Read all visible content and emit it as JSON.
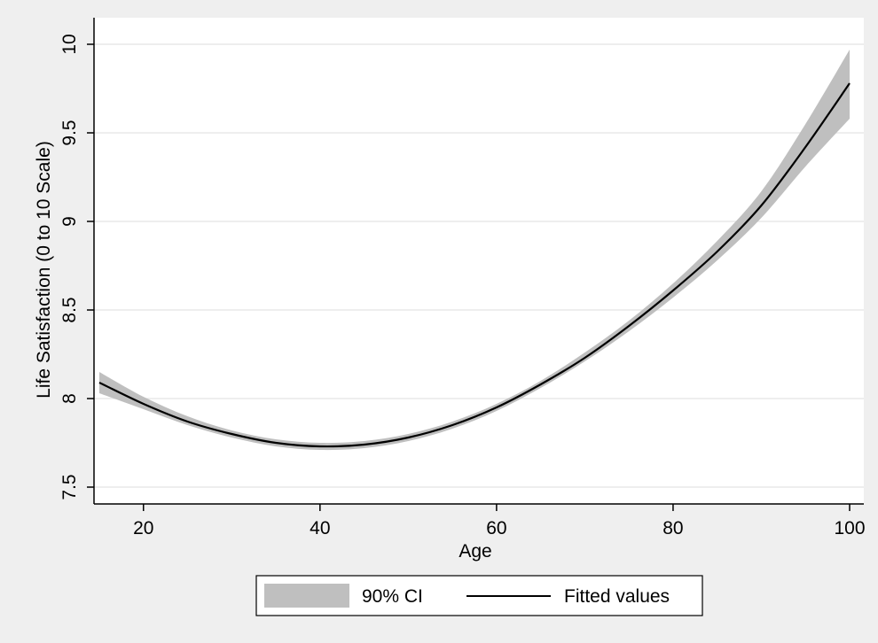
{
  "colors": {
    "background": "#efefef",
    "plot_area": "#ffffff",
    "grid": "#e8e8e8",
    "ci_band": "#bfbfbf",
    "line": "#000000",
    "axis": "#000000"
  },
  "chart_data": {
    "type": "line",
    "title": "",
    "xlabel": "Age",
    "ylabel": "Life Satisfaction (0 to 10 Scale)",
    "xlim": [
      15,
      100
    ],
    "ylim": [
      7.5,
      10
    ],
    "xticks": [
      20,
      40,
      60,
      80,
      100
    ],
    "yticks": [
      7.5,
      8,
      8.5,
      9,
      9.5,
      10
    ],
    "xtick_labels": [
      "20",
      "40",
      "60",
      "80",
      "100"
    ],
    "ytick_labels": [
      "7.5",
      "8",
      "8.5",
      "9",
      "9.5",
      "10"
    ],
    "grid": "horizontal",
    "legend": {
      "placement": "bottom",
      "entries": [
        "90% CI",
        "Fitted values"
      ]
    },
    "x": [
      15,
      20,
      25,
      30,
      35,
      40,
      45,
      50,
      55,
      60,
      65,
      70,
      75,
      80,
      85,
      90,
      95,
      100
    ],
    "series": [
      {
        "name": "Fitted values",
        "type": "line",
        "values": [
          8.09,
          7.97,
          7.87,
          7.8,
          7.75,
          7.73,
          7.74,
          7.78,
          7.85,
          7.95,
          8.08,
          8.23,
          8.41,
          8.61,
          8.83,
          9.09,
          9.42,
          9.78
        ]
      },
      {
        "name": "90% CI",
        "type": "band",
        "lower": [
          8.03,
          7.94,
          7.85,
          7.78,
          7.73,
          7.71,
          7.72,
          7.76,
          7.83,
          7.93,
          8.06,
          8.21,
          8.38,
          8.57,
          8.78,
          9.02,
          9.31,
          9.58
        ],
        "upper": [
          8.15,
          8.01,
          7.9,
          7.82,
          7.77,
          7.75,
          7.76,
          7.8,
          7.87,
          7.97,
          8.1,
          8.26,
          8.44,
          8.65,
          8.89,
          9.17,
          9.55,
          9.97
        ]
      }
    ]
  }
}
